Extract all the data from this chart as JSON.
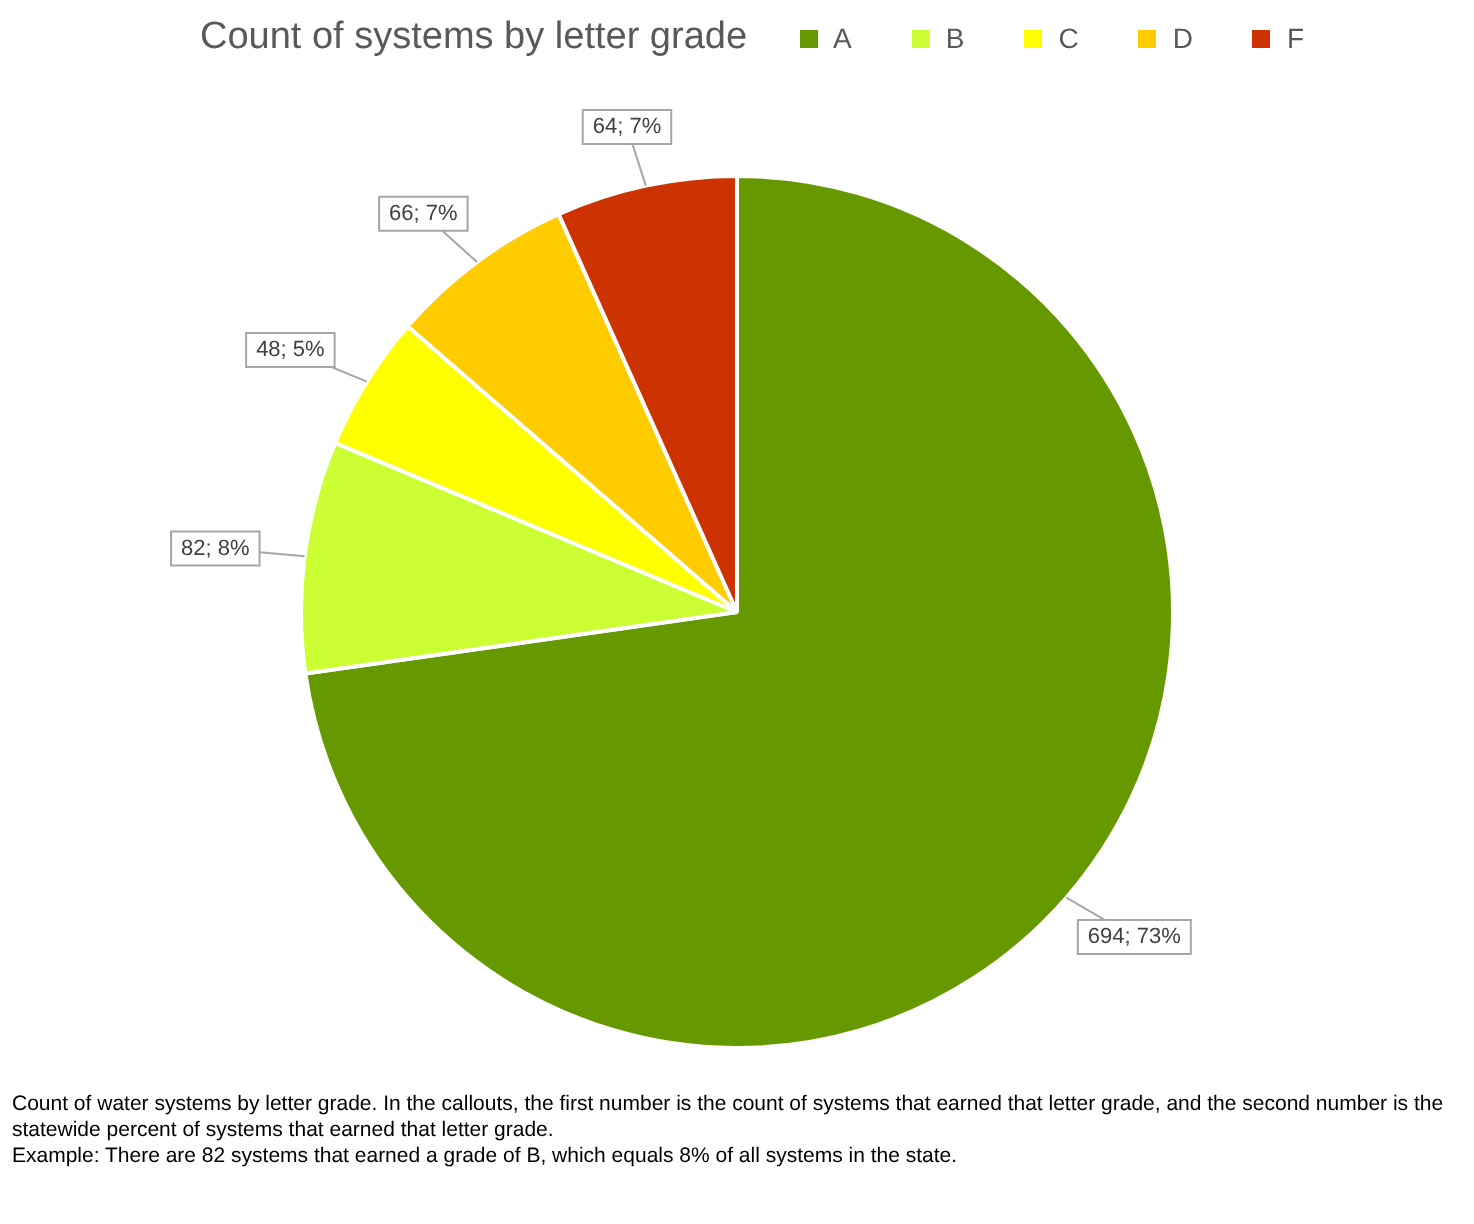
{
  "chart_data": {
    "type": "pie",
    "title": "Count of systems by letter grade",
    "categories": [
      "A",
      "B",
      "C",
      "D",
      "F"
    ],
    "values": [
      694,
      82,
      48,
      66,
      64
    ],
    "colors": [
      "#669900",
      "#ccff33",
      "#ffff00",
      "#ffcc00",
      "#cc3300"
    ],
    "value_labels": [
      "694; 73%",
      "82; 8%",
      "48; 5%",
      "66; 7%",
      "64; 7%"
    ],
    "legend": "top right",
    "annotations": [
      "Count of water systems by letter grade. In the callouts, the first number is the count of systems that earned that letter  grade, and the second number is the statewide percent of  systems that earned that letter grade.",
      "Example: There are 82 systems that earned a grade of B, which equals 8% of all systems in the state."
    ]
  }
}
